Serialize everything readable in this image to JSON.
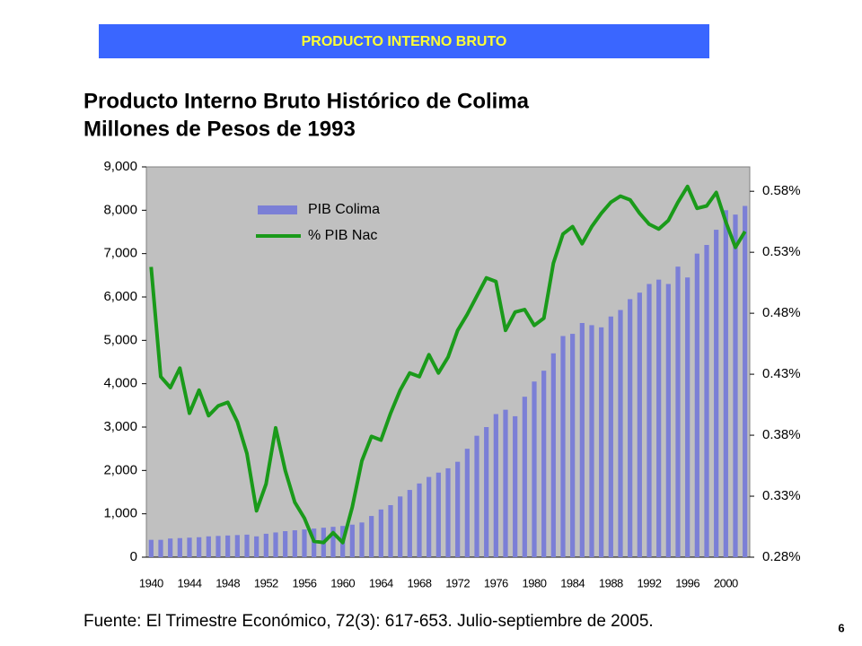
{
  "header": {
    "title": "PRODUCTO INTERNO BRUTO"
  },
  "chart_data": {
    "type": "bar_line",
    "title": "Producto Interno Bruto Histórico de Colima",
    "subtitle": "Millones de Pesos de 1993",
    "categories": [
      "1940",
      null,
      null,
      null,
      "1944",
      null,
      null,
      null,
      "1948",
      null,
      null,
      null,
      "1952",
      null,
      null,
      null,
      "1956",
      null,
      null,
      null,
      "1960",
      null,
      null,
      null,
      "1964",
      null,
      null,
      null,
      "1968",
      null,
      null,
      null,
      "1972",
      null,
      null,
      null,
      "1976",
      null,
      null,
      null,
      "1980",
      null,
      null,
      null,
      "1984",
      null,
      null,
      null,
      "1988",
      null,
      null,
      null,
      "1992",
      null,
      null,
      null,
      "1996",
      null,
      null,
      null,
      "2000",
      null,
      null
    ],
    "series": [
      {
        "name": "PIB Colima",
        "color": "#7b7fd6",
        "axis": "y",
        "values": [
          400,
          400,
          430,
          440,
          450,
          460,
          480,
          490,
          500,
          510,
          520,
          480,
          540,
          570,
          600,
          620,
          640,
          660,
          680,
          700,
          720,
          750,
          800,
          950,
          1100,
          1200,
          1400,
          1550,
          1700,
          1850,
          1950,
          2050,
          2200,
          2500,
          2800,
          3000,
          3300,
          3400,
          3250,
          3700,
          4050,
          4300,
          4700,
          5100,
          5150,
          5400,
          5350,
          5300,
          5550,
          5700,
          5950,
          6100,
          6300,
          6400,
          6300,
          6700,
          6450,
          7000,
          7200,
          7550,
          8000,
          7900,
          8100
        ]
      },
      {
        "name": "% PIB Nac",
        "color": "#1a9a1a",
        "axis": "y2",
        "values": [
          0.518,
          0.428,
          0.419,
          0.435,
          0.398,
          0.417,
          0.396,
          0.404,
          0.407,
          0.391,
          0.365,
          0.318,
          0.34,
          0.386,
          0.351,
          0.325,
          0.312,
          0.293,
          0.292,
          0.3,
          0.292,
          0.321,
          0.359,
          0.379,
          0.376,
          0.398,
          0.417,
          0.431,
          0.428,
          0.446,
          0.431,
          0.444,
          0.466,
          0.479,
          0.494,
          0.509,
          0.506,
          0.466,
          0.481,
          0.483,
          0.47,
          0.476,
          0.521,
          0.545,
          0.551,
          0.537,
          0.551,
          0.562,
          0.571,
          0.576,
          0.573,
          0.562,
          0.553,
          0.549,
          0.556,
          0.571,
          0.584,
          0.566,
          0.568,
          0.579,
          0.555,
          0.534,
          0.547
        ]
      }
    ],
    "ylim": [
      0,
      9000
    ],
    "yticks": [
      0,
      {
        "value": 1000,
        "label": "1,000"
      },
      {
        "value": 2000,
        "label": "2,000"
      },
      {
        "value": 3000,
        "label": "3,000"
      },
      {
        "value": 4000,
        "label": "4,000"
      },
      {
        "value": 5000,
        "label": "5,000"
      },
      {
        "value": 6000,
        "label": "6,000"
      },
      {
        "value": 7000,
        "label": "7,000"
      },
      {
        "value": 8000,
        "label": "8,000"
      },
      {
        "value": 9000,
        "label": "9,000"
      }
    ],
    "y2lim": [
      0.28,
      0.6
    ],
    "y2ticks": [
      {
        "value": 0.28,
        "label": "0.28%"
      },
      {
        "value": 0.33,
        "label": "0.33%"
      },
      {
        "value": 0.38,
        "label": "0.38%"
      },
      {
        "value": 0.43,
        "label": "0.43%"
      },
      {
        "value": 0.48,
        "label": "0.48%"
      },
      {
        "value": 0.53,
        "label": "0.53%"
      },
      {
        "value": 0.58,
        "label": "0.58%"
      }
    ],
    "legend": "upper left",
    "background": "#c0c0c0"
  },
  "source": "Fuente: El Trimestre Económico, 72(3): 617-653. Julio-septiembre de 2005.",
  "page_number": "6"
}
